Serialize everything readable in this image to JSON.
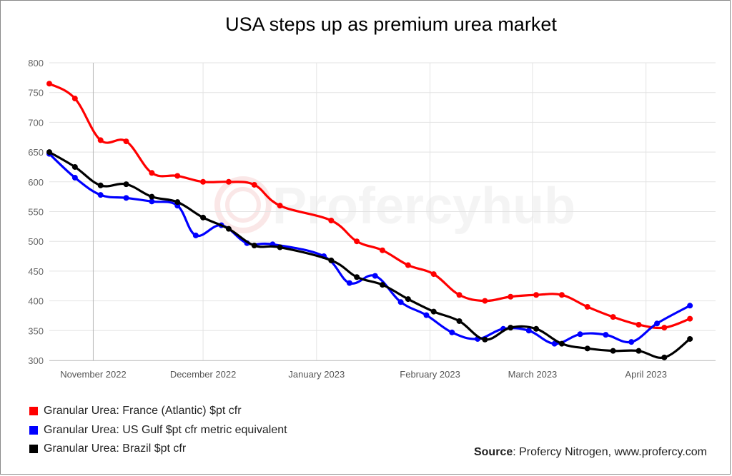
{
  "chart_data": {
    "type": "line",
    "title": "USA steps up as premium urea market",
    "xlabel": "",
    "ylabel": "",
    "ylim": [
      300,
      800
    ],
    "yticks": [
      300,
      350,
      400,
      450,
      500,
      550,
      600,
      650,
      700,
      750,
      800
    ],
    "xlim": [
      "2022-10-20",
      "2023-04-20"
    ],
    "xticks": [
      {
        "label": "November 2022",
        "date": "2022-11-01"
      },
      {
        "label": "December 2022",
        "date": "2022-12-01"
      },
      {
        "label": "January 2023",
        "date": "2023-01-01"
      },
      {
        "label": "February 2023",
        "date": "2023-02-01"
      },
      {
        "label": "March 2023",
        "date": "2023-03-01"
      },
      {
        "label": "April 2023",
        "date": "2023-04-01"
      }
    ],
    "grid": true,
    "legend_position": "bottom-left",
    "watermark": "Profercyhub",
    "series": [
      {
        "name": "Granular Urea: France (Atlantic) $pt cfr",
        "color": "#ff0000",
        "points": [
          [
            "2022-10-20",
            765
          ],
          [
            "2022-10-27",
            740
          ],
          [
            "2022-11-03",
            670
          ],
          [
            "2022-11-10",
            668
          ],
          [
            "2022-11-17",
            615
          ],
          [
            "2022-11-24",
            610
          ],
          [
            "2022-12-01",
            600
          ],
          [
            "2022-12-08",
            600
          ],
          [
            "2022-12-15",
            595
          ],
          [
            "2022-12-22",
            560
          ],
          [
            "2023-01-05",
            535
          ],
          [
            "2023-01-12",
            500
          ],
          [
            "2023-01-19",
            485
          ],
          [
            "2023-01-26",
            460
          ],
          [
            "2023-02-02",
            445
          ],
          [
            "2023-02-09",
            410
          ],
          [
            "2023-02-16",
            400
          ],
          [
            "2023-02-23",
            407
          ],
          [
            "2023-03-02",
            410
          ],
          [
            "2023-03-09",
            410
          ],
          [
            "2023-03-16",
            390
          ],
          [
            "2023-03-23",
            373
          ],
          [
            "2023-03-30",
            360
          ],
          [
            "2023-04-06",
            355
          ],
          [
            "2023-04-13",
            370
          ]
        ]
      },
      {
        "name": "Granular Urea: US Gulf $pt cfr metric equivalent",
        "color": "#0000ff",
        "points": [
          [
            "2022-10-20",
            647
          ],
          [
            "2022-10-27",
            607
          ],
          [
            "2022-11-03",
            578
          ],
          [
            "2022-11-10",
            573
          ],
          [
            "2022-11-17",
            567
          ],
          [
            "2022-11-24",
            560
          ],
          [
            "2022-11-29",
            510
          ],
          [
            "2022-12-06",
            527
          ],
          [
            "2022-12-13",
            497
          ],
          [
            "2022-12-20",
            495
          ],
          [
            "2023-01-03",
            475
          ],
          [
            "2023-01-10",
            430
          ],
          [
            "2023-01-17",
            442
          ],
          [
            "2023-01-24",
            398
          ],
          [
            "2023-01-31",
            376
          ],
          [
            "2023-02-07",
            347
          ],
          [
            "2023-02-14",
            336
          ],
          [
            "2023-02-21",
            353
          ],
          [
            "2023-02-28",
            350
          ],
          [
            "2023-03-07",
            328
          ],
          [
            "2023-03-14",
            344
          ],
          [
            "2023-03-21",
            343
          ],
          [
            "2023-03-28",
            331
          ],
          [
            "2023-04-04",
            362
          ],
          [
            "2023-04-13",
            392
          ]
        ]
      },
      {
        "name": "Granular Urea: Brazil $pt cfr",
        "color": "#000000",
        "points": [
          [
            "2022-10-20",
            650
          ],
          [
            "2022-10-27",
            625
          ],
          [
            "2022-11-03",
            594
          ],
          [
            "2022-11-10",
            596
          ],
          [
            "2022-11-17",
            575
          ],
          [
            "2022-11-24",
            566
          ],
          [
            "2022-12-01",
            540
          ],
          [
            "2022-12-08",
            521
          ],
          [
            "2022-12-15",
            493
          ],
          [
            "2022-12-22",
            490
          ],
          [
            "2023-01-05",
            468
          ],
          [
            "2023-01-12",
            440
          ],
          [
            "2023-01-19",
            427
          ],
          [
            "2023-01-26",
            403
          ],
          [
            "2023-02-02",
            382
          ],
          [
            "2023-02-09",
            366
          ],
          [
            "2023-02-16",
            335
          ],
          [
            "2023-02-23",
            355
          ],
          [
            "2023-03-02",
            353
          ],
          [
            "2023-03-09",
            328
          ],
          [
            "2023-03-16",
            320
          ],
          [
            "2023-03-23",
            316
          ],
          [
            "2023-03-30",
            316
          ],
          [
            "2023-04-06",
            305
          ],
          [
            "2023-04-13",
            336
          ]
        ]
      }
    ]
  },
  "source": {
    "label": "Source",
    "text": ": Profercy Nitrogen, www.profercy.com"
  }
}
